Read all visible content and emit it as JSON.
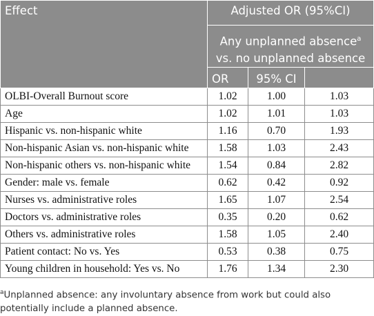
{
  "header": {
    "effect": "Effect",
    "group": "Adjusted OR (95%CI)",
    "subgroup_line1": "Any unplanned absence",
    "subgroup_sup": "a",
    "subgroup_line2": "vs. no unplanned absence",
    "col_or": "OR",
    "col_ci": "95% CI",
    "col_blank": ""
  },
  "rows": [
    {
      "effect": "OLBI-Overall Burnout score",
      "or": "1.02",
      "ci_low": "1.00",
      "ci_high": "1.03"
    },
    {
      "effect": "Age",
      "or": "1.02",
      "ci_low": "1.01",
      "ci_high": "1.03"
    },
    {
      "effect": "Hispanic vs. non-hispanic white",
      "or": "1.16",
      "ci_low": "0.70",
      "ci_high": "1.93"
    },
    {
      "effect": "Non-hispanic Asian vs. non-hispanic white",
      "or": "1.58",
      "ci_low": "1.03",
      "ci_high": "2.43"
    },
    {
      "effect": "Non-hispanic others vs. non-hispanic white",
      "or": "1.54",
      "ci_low": "0.84",
      "ci_high": "2.82"
    },
    {
      "effect": "Gender: male vs. female",
      "or": "0.62",
      "ci_low": "0.42",
      "ci_high": "0.92"
    },
    {
      "effect": "Nurses vs. administrative roles",
      "or": "1.65",
      "ci_low": "1.07",
      "ci_high": "2.54"
    },
    {
      "effect": "Doctors vs. administrative roles",
      "or": "0.35",
      "ci_low": "0.20",
      "ci_high": "0.62"
    },
    {
      "effect": "Others vs. administrative roles",
      "or": "1.58",
      "ci_low": "1.05",
      "ci_high": "2.40"
    },
    {
      "effect": "Patient contact: No vs. Yes",
      "or": "0.53",
      "ci_low": "0.38",
      "ci_high": "0.75"
    },
    {
      "effect": "Young children in household: Yes vs. No",
      "or": "1.76",
      "ci_low": "1.34",
      "ci_high": "2.30"
    }
  ],
  "footnote": {
    "marker": "a",
    "text": "Unplanned absence: any involuntary absence from work but could also potentially include a planned absence."
  }
}
